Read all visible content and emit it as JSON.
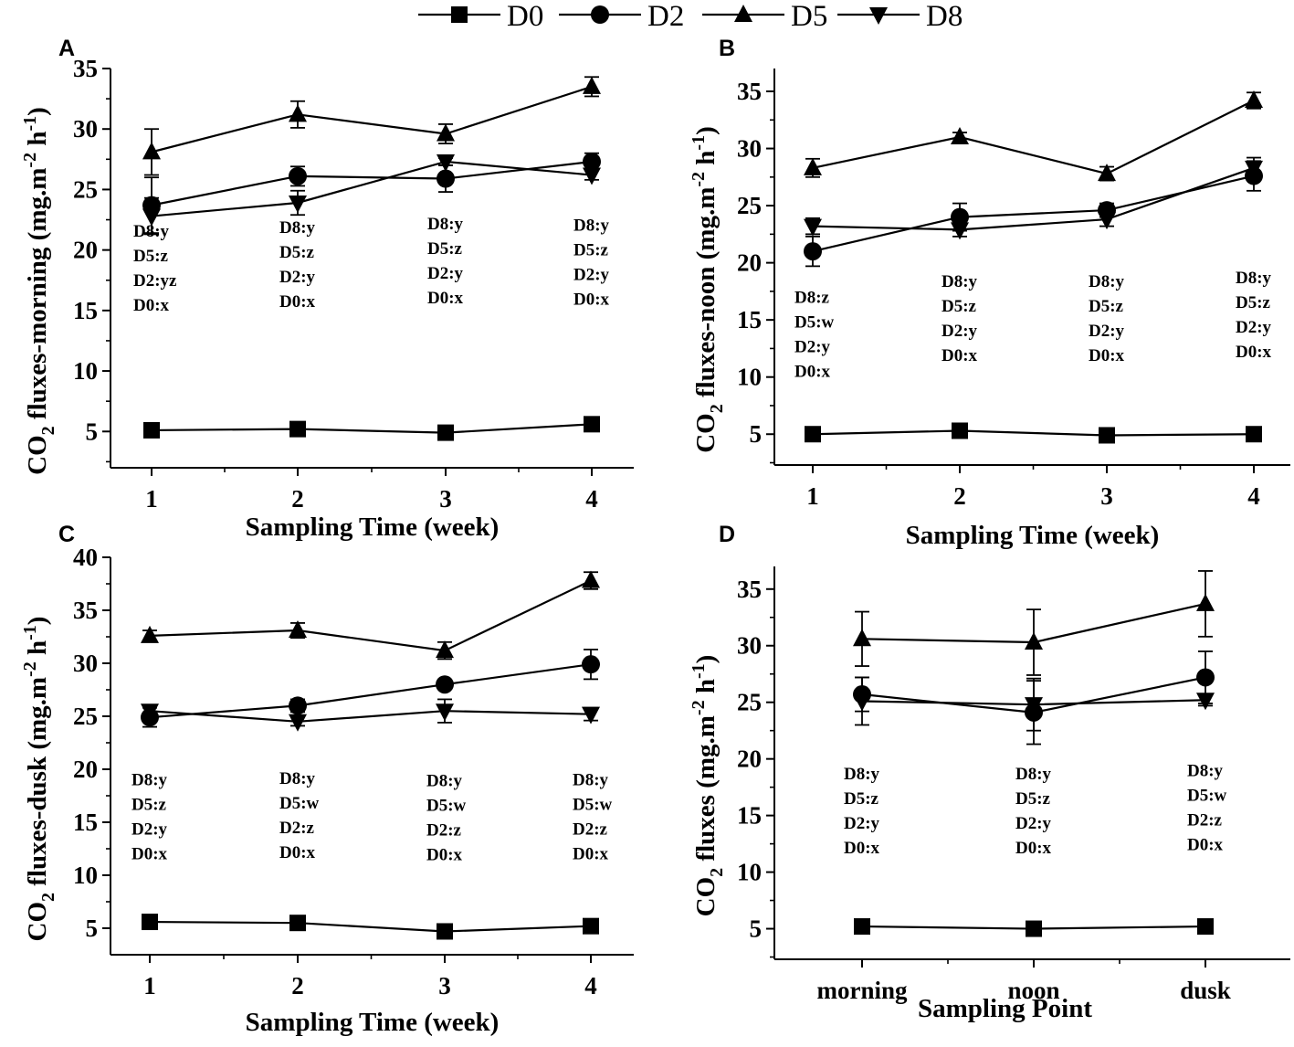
{
  "legend": [
    "D0",
    "D2",
    "D5",
    "D8"
  ],
  "chart_data": [
    {
      "type": "line",
      "panel": "A",
      "xlabel": "Sampling Time (week)",
      "ylabel": "CO2 fluxes-morning (mg.m-2 h-1)",
      "ylabel_main": "CO",
      "ylabel_sub": "2",
      "ylabel_rest": " fluxes-morning (mg.m",
      "ylabel_exp1": "-2",
      "ylabel_mid": " h",
      "ylabel_exp2": "-1",
      "ylabel_end": ")",
      "categories": [
        "1",
        "2",
        "3",
        "4"
      ],
      "ylim": [
        2,
        35
      ],
      "yticks": [
        5,
        10,
        15,
        20,
        25,
        30,
        35
      ],
      "series": [
        {
          "name": "D0",
          "marker": "square",
          "values": [
            5.1,
            5.2,
            4.9,
            5.6
          ],
          "errors": [
            0.3,
            0.3,
            0.3,
            0.3
          ]
        },
        {
          "name": "D2",
          "marker": "circle",
          "values": [
            23.7,
            26.1,
            25.9,
            27.3
          ],
          "errors": [
            2.3,
            0.8,
            1.1,
            0.7
          ]
        },
        {
          "name": "D5",
          "marker": "triangle-up",
          "values": [
            28.1,
            31.2,
            29.6,
            33.5
          ],
          "errors": [
            1.9,
            1.1,
            0.8,
            0.8
          ]
        },
        {
          "name": "D8",
          "marker": "triangle-down",
          "values": [
            22.8,
            23.9,
            27.3,
            26.2
          ],
          "errors": [
            1.5,
            1.0,
            0.3,
            0.4
          ]
        }
      ],
      "annotations": [
        {
          "x": "1",
          "lines": [
            "D8:y",
            "D5:z",
            "D2:yz",
            "D0:x"
          ],
          "top": 21.1
        },
        {
          "x": "2",
          "lines": [
            "D8:y",
            "D5:z",
            "D2:y",
            "D0:x"
          ],
          "top": 21.4
        },
        {
          "x": "3",
          "lines": [
            "D8:y",
            "D5:z",
            "D2:y",
            "D0:x"
          ],
          "top": 21.7
        },
        {
          "x": "4",
          "lines": [
            "D8:y",
            "D5:z",
            "D2:y",
            "D0:x"
          ],
          "top": 21.6
        }
      ]
    },
    {
      "type": "line",
      "panel": "B",
      "xlabel": "Sampling Time (week)",
      "ylabel": "CO2 fluxes-noon (mg.m-2 h-1)",
      "ylabel_main": "CO",
      "ylabel_sub": "2",
      "ylabel_rest": " fluxes-noon (mg.m",
      "ylabel_exp1": "-2",
      "ylabel_mid": " h",
      "ylabel_exp2": "-1",
      "ylabel_end": ")",
      "categories": [
        "1",
        "2",
        "3",
        "4"
      ],
      "ylim": [
        2.3,
        37
      ],
      "yticks": [
        5,
        10,
        15,
        20,
        25,
        30,
        35
      ],
      "series": [
        {
          "name": "D0",
          "marker": "square",
          "values": [
            5.0,
            5.3,
            4.9,
            5.0
          ],
          "errors": [
            0.3,
            0.3,
            0.3,
            0.3
          ]
        },
        {
          "name": "D2",
          "marker": "circle",
          "values": [
            21.0,
            24.0,
            24.6,
            27.6
          ],
          "errors": [
            1.3,
            1.2,
            0.6,
            1.3
          ]
        },
        {
          "name": "D5",
          "marker": "triangle-up",
          "values": [
            28.3,
            31.0,
            27.8,
            34.2
          ],
          "errors": [
            0.8,
            0.4,
            0.6,
            0.7
          ]
        },
        {
          "name": "D8",
          "marker": "triangle-down",
          "values": [
            23.2,
            22.9,
            23.8,
            28.3
          ],
          "errors": [
            0.7,
            0.6,
            0.6,
            0.9
          ]
        }
      ],
      "annotations": [
        {
          "x": "1",
          "lines": [
            "D8:z",
            "D5:w",
            "D2:y",
            "D0:x"
          ],
          "top": 16.5
        },
        {
          "x": "2",
          "lines": [
            "D8:y",
            "D5:z",
            "D2:y",
            "D0:x"
          ],
          "top": 17.9
        },
        {
          "x": "3",
          "lines": [
            "D8:y",
            "D5:z",
            "D2:y",
            "D0:x"
          ],
          "top": 17.9
        },
        {
          "x": "4",
          "lines": [
            "D8:y",
            "D5:z",
            "D2:y",
            "D0:x"
          ],
          "top": 18.2
        }
      ]
    },
    {
      "type": "line",
      "panel": "C",
      "xlabel": "Sampling Time (week)",
      "ylabel": "CO2 fluxes-dusk (mg.m-2 h-1)",
      "ylabel_main": "CO",
      "ylabel_sub": "2",
      "ylabel_rest": " fluxes-dusk (mg.m",
      "ylabel_exp1": "-2",
      "ylabel_mid": " h",
      "ylabel_exp2": "-1",
      "ylabel_end": ")",
      "categories": [
        "1",
        "2",
        "3",
        "4"
      ],
      "ylim": [
        2.5,
        40
      ],
      "yticks": [
        5,
        10,
        15,
        20,
        25,
        30,
        35,
        40
      ],
      "series": [
        {
          "name": "D0",
          "marker": "square",
          "values": [
            5.6,
            5.5,
            4.7,
            5.2
          ],
          "errors": [
            0.3,
            0.3,
            0.3,
            0.3
          ]
        },
        {
          "name": "D2",
          "marker": "circle",
          "values": [
            24.9,
            26.0,
            28.0,
            29.9
          ],
          "errors": [
            0.9,
            0.6,
            0.4,
            1.4
          ]
        },
        {
          "name": "D5",
          "marker": "triangle-up",
          "values": [
            32.6,
            33.1,
            31.2,
            37.8
          ],
          "errors": [
            0.5,
            0.7,
            0.8,
            0.8
          ]
        },
        {
          "name": "D8",
          "marker": "triangle-down",
          "values": [
            25.5,
            24.5,
            25.5,
            25.2
          ],
          "errors": [
            0.4,
            0.4,
            1.1,
            0.6
          ]
        }
      ],
      "annotations": [
        {
          "x": "1",
          "lines": [
            "D8:y",
            "D5:z",
            "D2:y",
            "D0:x"
          ],
          "top": 18.5
        },
        {
          "x": "2",
          "lines": [
            "D8:y",
            "D5:w",
            "D2:z",
            "D0:x"
          ],
          "top": 18.6
        },
        {
          "x": "3",
          "lines": [
            "D8:y",
            "D5:w",
            "D2:z",
            "D0:x"
          ],
          "top": 18.4
        },
        {
          "x": "4",
          "lines": [
            "D8:y",
            "D5:w",
            "D2:z",
            "D0:x"
          ],
          "top": 18.5
        }
      ]
    },
    {
      "type": "line",
      "panel": "D",
      "xlabel": "Sampling Point",
      "ylabel": "CO2 fluxes (mg.m-2 h-1)",
      "ylabel_main": "CO",
      "ylabel_sub": "2",
      "ylabel_rest": " fluxes (mg.m",
      "ylabel_exp1": "-2",
      "ylabel_mid": " h",
      "ylabel_exp2": "-1",
      "ylabel_end": ")",
      "categories": [
        "morning",
        "noon",
        "dusk"
      ],
      "ylim": [
        2.3,
        37
      ],
      "yticks": [
        5,
        10,
        15,
        20,
        25,
        30,
        35
      ],
      "series": [
        {
          "name": "D0",
          "marker": "square",
          "values": [
            5.2,
            5.0,
            5.2
          ],
          "errors": [
            0.2,
            0.2,
            0.2
          ]
        },
        {
          "name": "D2",
          "marker": "circle",
          "values": [
            25.7,
            24.1,
            27.2
          ],
          "errors": [
            1.5,
            2.8,
            2.3
          ]
        },
        {
          "name": "D5",
          "marker": "triangle-up",
          "values": [
            30.6,
            30.3,
            33.7
          ],
          "errors": [
            2.4,
            2.9,
            2.9
          ]
        },
        {
          "name": "D8",
          "marker": "triangle-down",
          "values": [
            25.1,
            24.8,
            25.2
          ],
          "errors": [
            2.1,
            2.3,
            0.5
          ]
        }
      ],
      "annotations": [
        {
          "x": "morning",
          "lines": [
            "D8:y",
            "D5:z",
            "D2:y",
            "D0:x"
          ],
          "top": 18.2
        },
        {
          "x": "noon",
          "lines": [
            "D8:y",
            "D5:z",
            "D2:y",
            "D0:x"
          ],
          "top": 18.2
        },
        {
          "x": "dusk",
          "lines": [
            "D8:y",
            "D5:w",
            "D2:z",
            "D0:x"
          ],
          "top": 18.5
        }
      ]
    }
  ]
}
